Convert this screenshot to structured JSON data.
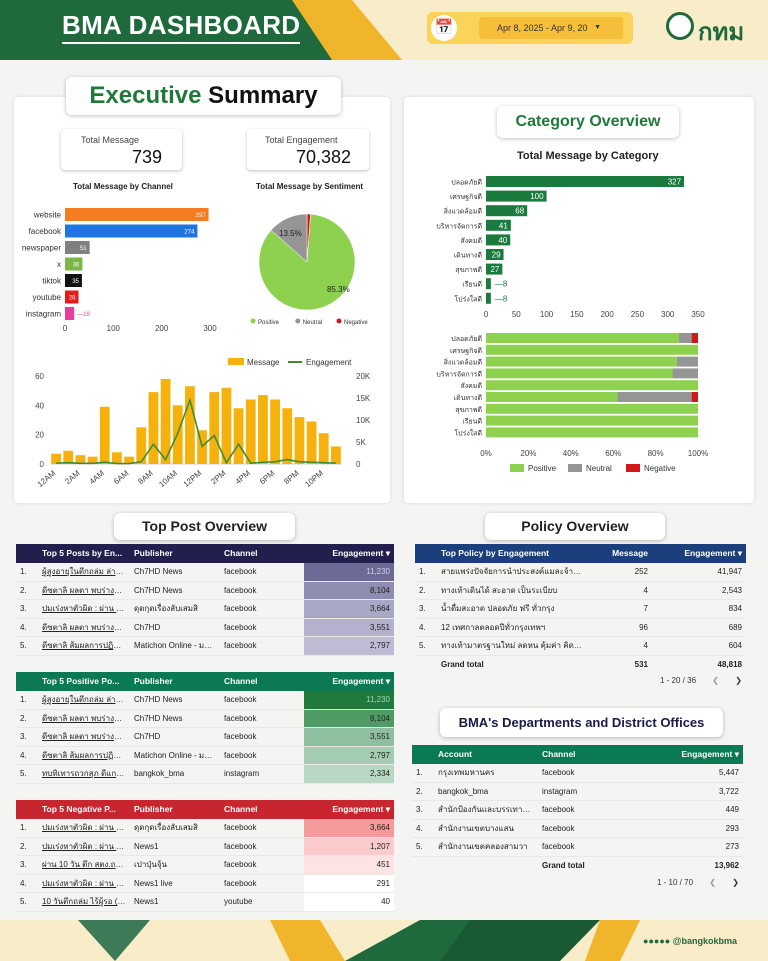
{
  "header": {
    "title": "BMA DASHBOARD",
    "date_range": "Apr 8, 2025 - Apr 9, 20",
    "logo_text": "กทม"
  },
  "exec": {
    "title_a": "Executive",
    "title_b": " Summary",
    "total_message": {
      "label": "Total Message",
      "value": "739"
    },
    "total_engagement": {
      "label": "Total Engagement",
      "value": "70,382"
    },
    "channel_title": "Total Message by Channel",
    "sentiment_title": "Total Message by Sentiment"
  },
  "category": {
    "title": "Category Overview",
    "chart_title": "Total Message by Category"
  },
  "sections": {
    "top_post": "Top Post Overview",
    "policy": "Policy Overview",
    "departments": "BMA's Departments and District Offices"
  },
  "footer": {
    "handle": "@bangkokbma"
  },
  "chart_data": [
    {
      "type": "bar",
      "title": "Total Message by Channel",
      "orientation": "horizontal",
      "categories": [
        "website",
        "facebook",
        "newspaper",
        "x",
        "tiktok",
        "youtube",
        "instagram"
      ],
      "values": [
        297,
        274,
        51,
        36,
        35,
        28,
        19
      ],
      "colors": [
        "#f57c1f",
        "#1e74e0",
        "#7f7f7f",
        "#7ab648",
        "#111111",
        "#e11d1d",
        "#e93c9c"
      ],
      "xlim": [
        0,
        300
      ],
      "xticks": [
        0,
        100,
        200,
        300
      ]
    },
    {
      "type": "pie",
      "title": "Total Message by Sentiment",
      "slices": [
        {
          "name": "Positive",
          "value": 85.3,
          "color": "#8ed14f"
        },
        {
          "name": "Neutral",
          "value": 13.5,
          "color": "#959595"
        },
        {
          "name": "Negative",
          "value": 1.2,
          "color": "#d11919"
        }
      ],
      "labels": [
        "85.3%",
        "13.5%"
      ],
      "legend": "bottom"
    },
    {
      "type": "bar",
      "subtype": "combo",
      "legend": "top",
      "series": [
        {
          "name": "Message",
          "axis": "left",
          "color": "#f6b10d"
        },
        {
          "name": "Engagement",
          "axis": "right",
          "color": "#3e8e2f"
        }
      ],
      "x": [
        "12AM",
        "1AM",
        "2AM",
        "3AM",
        "4AM",
        "5AM",
        "6AM",
        "7AM",
        "8AM",
        "9AM",
        "10AM",
        "11AM",
        "12PM",
        "1PM",
        "2PM",
        "3PM",
        "4PM",
        "5PM",
        "6PM",
        "7PM",
        "8PM",
        "9PM",
        "10PM",
        "11PM"
      ],
      "xticks": [
        "12AM",
        "2AM",
        "4AM",
        "6AM",
        "8AM",
        "10AM",
        "12PM",
        "2PM",
        "4PM",
        "6PM",
        "8PM",
        "10PM"
      ],
      "message": [
        7,
        9,
        6,
        5,
        39,
        8,
        5,
        25,
        49,
        58,
        40,
        53,
        23,
        49,
        52,
        38,
        44,
        47,
        44,
        38,
        32,
        29,
        21,
        12
      ],
      "engagement": [
        200,
        300,
        150,
        150,
        400,
        100,
        100,
        500,
        4500,
        1000,
        7000,
        14500,
        4000,
        6500,
        300,
        4500,
        200,
        400,
        500,
        1000,
        500,
        400,
        300,
        200
      ],
      "ylim_left": [
        0,
        60
      ],
      "yticks_left": [
        0,
        20,
        40,
        60
      ],
      "ylim_right": [
        0,
        20000
      ],
      "yticks_right": [
        "0",
        "5K",
        "10K",
        "15K",
        "20K"
      ]
    },
    {
      "type": "bar",
      "title": "Total Message by Category",
      "orientation": "horizontal",
      "categories": [
        "ปลอดภัยดี",
        "เศรษฐกิจดี",
        "สิ่งแวดล้อมดี",
        "บริหารจัดการดี",
        "สังคมดี",
        "เดินทางดี",
        "สุขภาพดี",
        "เรียนดี",
        "โปร่งใสดี"
      ],
      "values": [
        327,
        100,
        68,
        41,
        40,
        29,
        27,
        8,
        8
      ],
      "color": "#1b7a3e",
      "xlim": [
        0,
        350
      ],
      "xticks": [
        0,
        50,
        100,
        150,
        200,
        250,
        300,
        350
      ]
    },
    {
      "type": "bar",
      "subtype": "stacked_100",
      "orientation": "horizontal",
      "categories": [
        "ปลอดภัยดี",
        "เศรษฐกิจดี",
        "สิ่งแวดล้อมดี",
        "บริหารจัดการดี",
        "สังคมดี",
        "เดินทางดี",
        "สุขภาพดี",
        "เรียนดี",
        "โปร่งใสดี"
      ],
      "series": [
        {
          "name": "Positive",
          "color": "#8ed14f",
          "values": [
            91,
            100,
            90,
            88,
            100,
            62,
            100,
            100,
            100
          ]
        },
        {
          "name": "Neutral",
          "color": "#959595",
          "values": [
            6,
            0,
            10,
            12,
            0,
            35,
            0,
            0,
            0
          ]
        },
        {
          "name": "Negative",
          "color": "#d11919",
          "values": [
            3,
            0,
            0,
            0,
            0,
            3,
            0,
            0,
            0
          ]
        }
      ],
      "xticks": [
        "0%",
        "20%",
        "40%",
        "60%",
        "80%",
        "100%"
      ],
      "legend": "bottom"
    },
    {
      "type": "table",
      "title": "Top 5 Posts by Engagement",
      "columns": [
        "Top 5 Posts by En...",
        "Publisher",
        "Channel",
        "Engagement ▾"
      ],
      "rows": [
        [
          "1.",
          "ผู้สูงอายุในตึกถล่ม ล่าสุด...",
          "Ch7HD News",
          "facebook",
          "11,230"
        ],
        [
          "2.",
          "ดีซตาลิ ผลตา พบร่างผู้เสียชีวิ...",
          "Ch7HD News",
          "facebook",
          "8,104"
        ],
        [
          "3.",
          "ปมเร่งหาตัวผิด : ผ่าน 10 วัน...",
          "ดุดกุดเรื่องลับเสมสิ",
          "facebook",
          "3,664"
        ],
        [
          "4.",
          "ดีซตาลิ ผลตา พบร่างผู้เสียชีวิ...",
          "Ch7HD",
          "facebook",
          "3,551"
        ],
        [
          "5.",
          "ดีซตาลิ ส้มผลการปฏิบัติสด...",
          "Matichon Online - มติ...",
          "facebook",
          "2,797"
        ]
      ]
    },
    {
      "type": "table",
      "title": "Top 5 Positive Posts",
      "columns": [
        "Top 5 Positive Po...",
        "Publisher",
        "Channel",
        "Engagement ▾"
      ],
      "rows": [
        [
          "1.",
          "ผู้สูงอายุในตึกถล่ม ล่าสุด...",
          "Ch7HD News",
          "facebook",
          "11,230"
        ],
        [
          "2.",
          "ดีซตาลิ ผลตา พบร่างผู้เสียชีวิ...",
          "Ch7HD News",
          "facebook",
          "8,104"
        ],
        [
          "3.",
          "ดีซตาลิ ผลตา พบร่างผู้เสียชีวิ...",
          "Ch7HD",
          "facebook",
          "3,551"
        ],
        [
          "4.",
          "ดีซตาลิ ส้มผลการปฏิบัติสด...",
          "Matichon Online - มติ...",
          "facebook",
          "2,797"
        ],
        [
          "5.",
          "ทบทิเทารถวกสุภ ดีแกาง...",
          "bangkok_bma",
          "instagram",
          "2,334"
        ]
      ]
    },
    {
      "type": "table",
      "title": "Top 5 Negative Posts",
      "columns": [
        "Top 5 Negative P...",
        "Publisher",
        "Channel",
        "Engagement ▾"
      ],
      "rows": [
        [
          "1.",
          "ปมเร่งหาตัวผิด : ผ่าน 10 ...",
          "ดุดกุดเรื่องลับเสมสิ",
          "facebook",
          "3,664"
        ],
        [
          "2.",
          "ปมเร่งหาตัวผิด : ผ่าน 10 ...",
          "News1",
          "facebook",
          "1,207"
        ],
        [
          "3.",
          "ผ่าน 10 วัน ตึก สตง.ถล่ม ...",
          "เปาปุ่นจุ้น",
          "facebook",
          "451"
        ],
        [
          "4.",
          "ปมเร่งหาตัวผิด : ผ่าน 10 ...",
          "News1 live",
          "facebook",
          "291"
        ],
        [
          "5.",
          "10 วันตึกถล่ม ไร้ผู้รอ (เจ้...",
          "News1",
          "youtube",
          "40"
        ]
      ]
    },
    {
      "type": "table",
      "title": "Top Policy by Engagement",
      "columns": [
        "Top Policy by Engagement",
        "Message",
        "Engagement ▾"
      ],
      "rows": [
        [
          "1.",
          "สายแพร่งปัจจัยการนำประสงค์แมละจ้างหน้า...",
          "252",
          "41,947"
        ],
        [
          "2.",
          "ทางเท้าเดินได้ สะอาด เป็นระเบียบ",
          "4",
          "2,543"
        ],
        [
          "3.",
          "น้ำดื่มสะอาด ปลอดภัย ฟรี ทั่วกรุง",
          "7",
          "834"
        ],
        [
          "4.",
          "12 เทศกาลตลอดปีทั่วกรุงเทพฯ",
          "96",
          "689"
        ],
        [
          "5.",
          "ทางเท้ามาตรฐานใหม่ ลดหน คุ้มค่า คิดถึง...",
          "4",
          "604"
        ]
      ],
      "total": [
        "Grand total",
        "531",
        "48,818"
      ],
      "pager": "1 - 20 / 36"
    },
    {
      "type": "table",
      "title": "BMA's Departments and District Offices",
      "columns": [
        "Account",
        "Channel",
        "Engagement ▾"
      ],
      "rows": [
        [
          "1.",
          "กรุงเทพมหานคร",
          "facebook",
          "5,447"
        ],
        [
          "2.",
          "bangkok_bma",
          "instagram",
          "3,722"
        ],
        [
          "3.",
          "สำนักป้องกันและบรรเทาสาธาร...",
          "facebook",
          "449"
        ],
        [
          "4.",
          "สำนักงานเขตบางแสน",
          "facebook",
          "293"
        ],
        [
          "5.",
          "สำนักงานเขตคลองสามวา",
          "facebook",
          "273"
        ]
      ],
      "total": [
        "Grand total",
        "13,962"
      ],
      "pager": "1 - 10 / 70"
    }
  ]
}
